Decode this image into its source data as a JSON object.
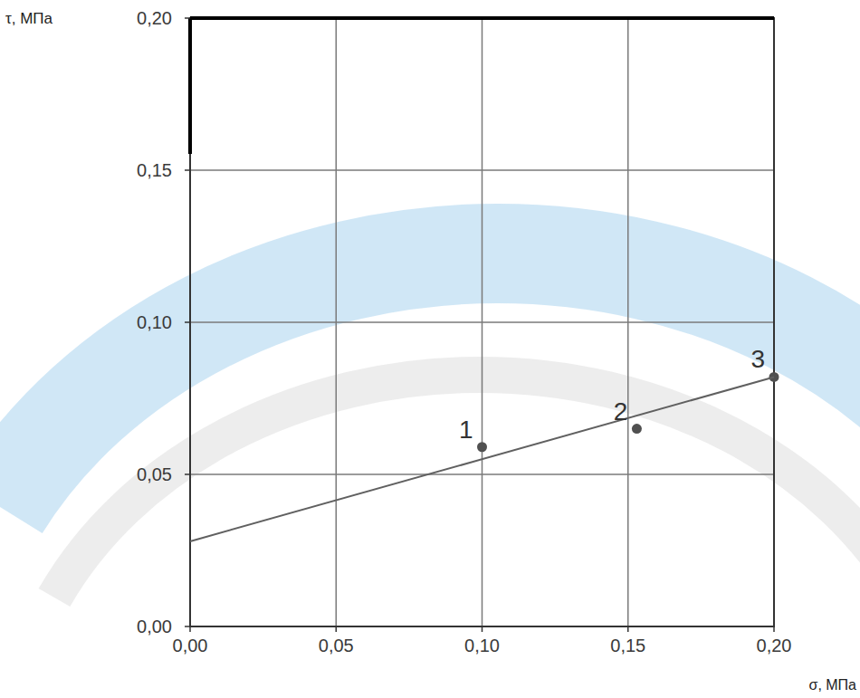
{
  "chart_data": {
    "type": "scatter",
    "x_label": "σ, МПа",
    "y_label": "τ, МПа",
    "xlim": [
      0,
      0.2
    ],
    "ylim": [
      0,
      0.2
    ],
    "xticks": [
      {
        "value": 0,
        "label": "0,00"
      },
      {
        "value": 0.05,
        "label": "0,05"
      },
      {
        "value": 0.1,
        "label": "0,10"
      },
      {
        "value": 0.15,
        "label": "0,15"
      },
      {
        "value": 0.2,
        "label": "0,20"
      }
    ],
    "yticks": [
      {
        "value": 0,
        "label": "0,00"
      },
      {
        "value": 0.05,
        "label": "0,05"
      },
      {
        "value": 0.1,
        "label": "0,10"
      },
      {
        "value": 0.15,
        "label": "0,15"
      },
      {
        "value": 0.2,
        "label": "0,20"
      }
    ],
    "grid": true,
    "series": [
      {
        "type": "scatter",
        "color": "#505050",
        "marker": "circle",
        "x": [
          0.1,
          0.153,
          0.2
        ],
        "values": [
          0.059,
          0.065,
          0.082
        ],
        "point_labels": [
          "1",
          "2",
          "3"
        ]
      },
      {
        "type": "line",
        "color": "#606060",
        "line_style": "solid",
        "x": [
          0,
          0.2
        ],
        "values": [
          0.028,
          0.082
        ]
      }
    ]
  }
}
